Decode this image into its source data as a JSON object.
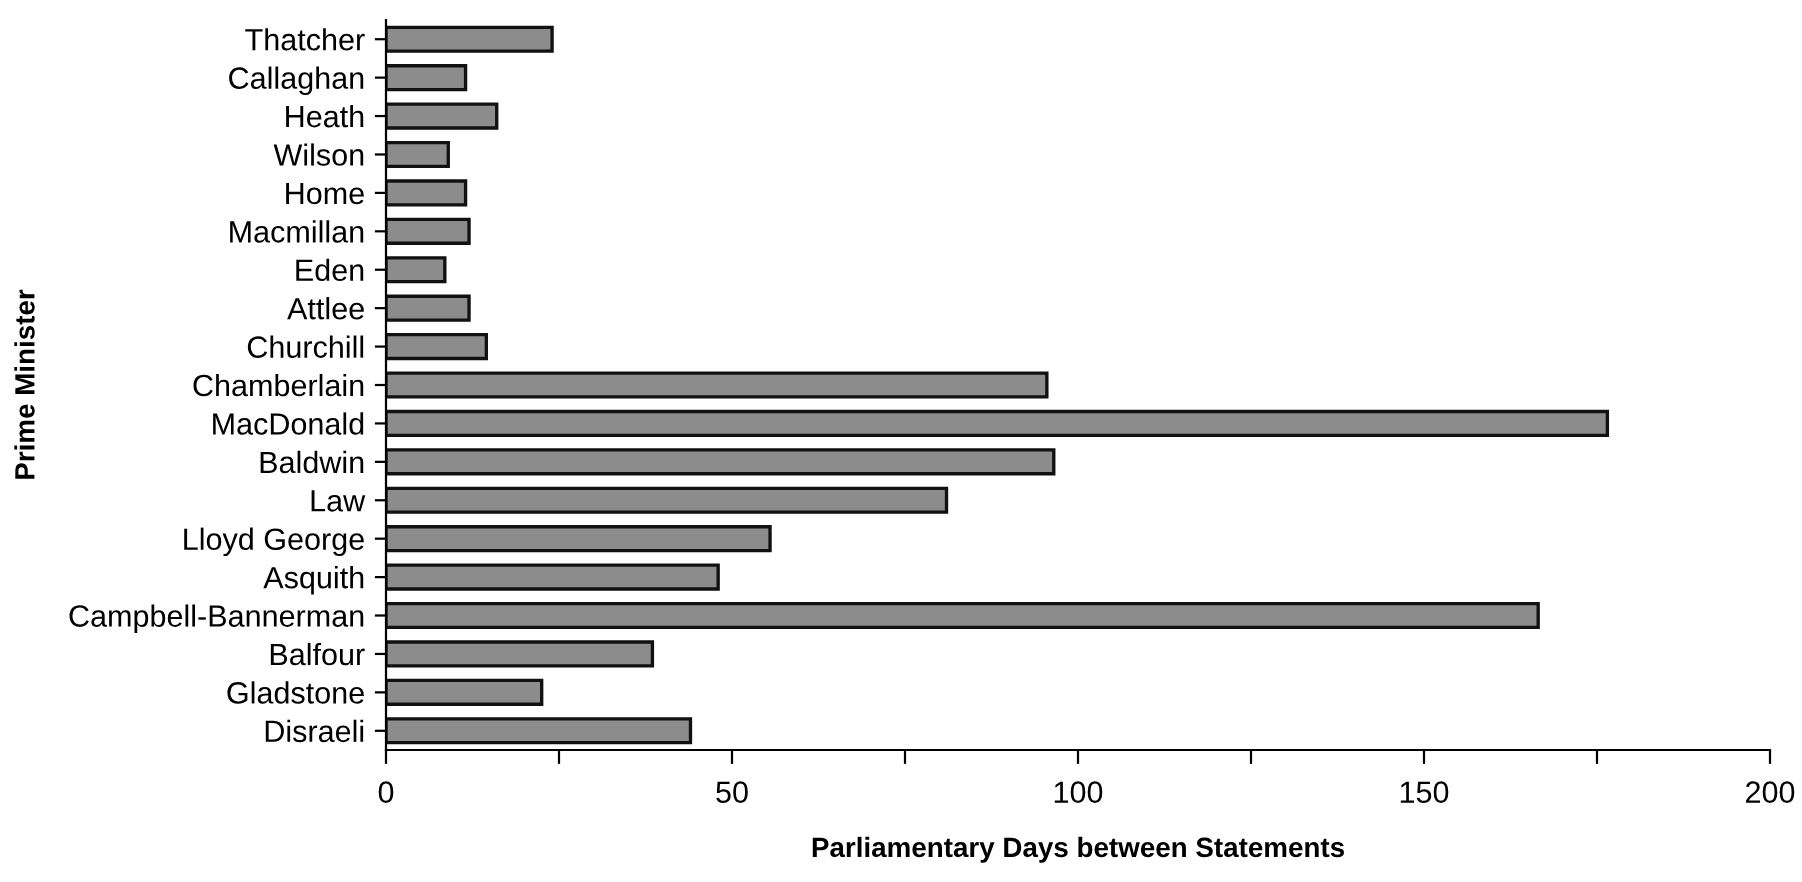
{
  "chart_data": {
    "type": "bar",
    "orientation": "horizontal",
    "xlabel": "Parliamentary Days between Statements",
    "ylabel": "Prime Minister",
    "categories": [
      "Thatcher",
      "Callaghan",
      "Heath",
      "Wilson",
      "Home",
      "Macmillan",
      "Eden",
      "Attlee",
      "Churchill",
      "Chamberlain",
      "MacDonald",
      "Baldwin",
      "Law",
      "Lloyd George",
      "Asquith",
      "Campbell-Bannerman",
      "Balfour",
      "Gladstone",
      "Disraeli"
    ],
    "values": [
      24,
      11.5,
      16,
      9,
      11.5,
      12,
      8.5,
      12,
      14.5,
      95.5,
      176.5,
      96.5,
      81,
      55.5,
      48,
      166.5,
      38.5,
      22.5,
      44
    ],
    "color": "#8c8c8c",
    "xlim": [
      0,
      200
    ],
    "xticks": [
      0,
      {
        "value": 25,
        "label": null
      },
      50,
      {
        "value": 75,
        "label": null
      },
      100,
      {
        "value": 125,
        "label": null
      },
      150,
      {
        "value": 175,
        "label": null
      },
      200
    ],
    "grid": false
  }
}
